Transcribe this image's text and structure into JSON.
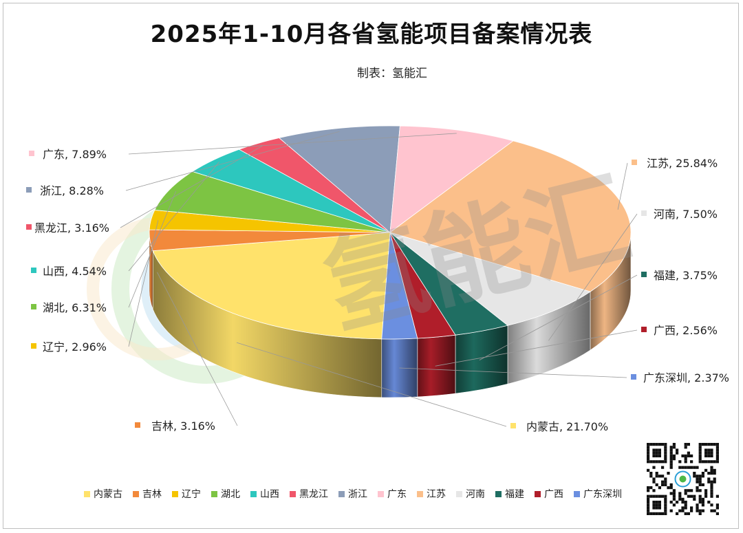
{
  "title": "2025年1-10月各省氢能项目备案情况表",
  "subtitle": "制表：氢能汇",
  "watermark": "氢能汇",
  "chart_data": {
    "type": "pie",
    "title": "2025年1-10月各省氢能项目备案情况表",
    "slices": [
      {
        "name": "内蒙古",
        "value": 21.7,
        "label": "内蒙古, 21.70%",
        "color": "#FFE26B"
      },
      {
        "name": "吉林",
        "value": 3.16,
        "label": "吉林, 3.16%",
        "color": "#F2893B"
      },
      {
        "name": "辽宁",
        "value": 2.96,
        "label": "辽宁, 2.96%",
        "color": "#F5C400"
      },
      {
        "name": "湖北",
        "value": 6.31,
        "label": "湖北, 6.31%",
        "color": "#7DC443"
      },
      {
        "name": "山西",
        "value": 4.54,
        "label": "山西, 4.54%",
        "color": "#2DC7BE"
      },
      {
        "name": "黑龙江",
        "value": 3.16,
        "label": "黑龙江, 3.16%",
        "color": "#F0566A"
      },
      {
        "name": "浙江",
        "value": 8.28,
        "label": "浙江, 8.28%",
        "color": "#8C9DB8"
      },
      {
        "name": "广东",
        "value": 7.89,
        "label": "广东, 7.89%",
        "color": "#FFC4CF"
      },
      {
        "name": "江苏",
        "value": 25.84,
        "label": "江苏, 25.84%",
        "color": "#FBBF8A"
      },
      {
        "name": "河南",
        "value": 7.5,
        "label": "河南, 7.50%",
        "color": "#E6E6E6"
      },
      {
        "name": "福建",
        "value": 3.75,
        "label": "福建, 3.75%",
        "color": "#1F6E62"
      },
      {
        "name": "广西",
        "value": 2.56,
        "label": "广西, 2.56%",
        "color": "#B01E2A"
      },
      {
        "name": "广东深圳",
        "value": 2.37,
        "label": "广东深圳, 2.37%",
        "color": "#6B8FE0"
      }
    ],
    "legend_position": "bottom"
  }
}
